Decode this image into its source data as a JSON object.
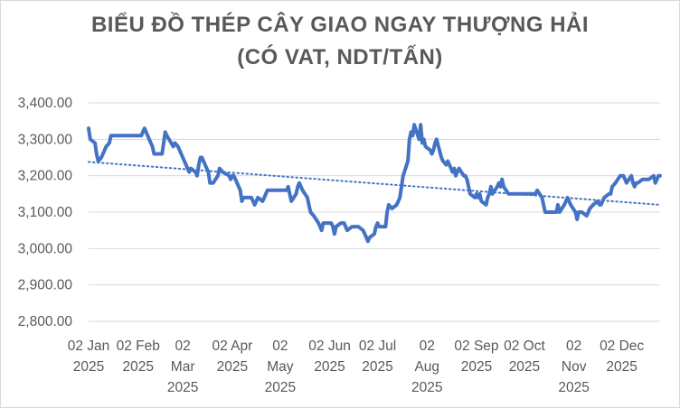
{
  "chart_data": {
    "type": "line",
    "title_line1": "BIỂU ĐỒ THÉP CÂY GIAO NGAY THƯỢNG HẢI",
    "title_line2": "(CÓ VAT, NDT/TẤN)",
    "xlabel": "",
    "ylabel": "",
    "ylim": [
      2800,
      3400
    ],
    "yticks": [
      "2,800.00",
      "2,900.00",
      "3,000.00",
      "3,100.00",
      "3,200.00",
      "3,300.00",
      "3,400.00"
    ],
    "xticks": [
      {
        "date": "2025-01-02",
        "label": [
          "02 Jan",
          "2025"
        ]
      },
      {
        "date": "2025-02-02",
        "label": [
          "02 Feb",
          "2025"
        ]
      },
      {
        "date": "2025-03-02",
        "label": [
          "02",
          "Mar",
          "2025"
        ]
      },
      {
        "date": "2025-04-02",
        "label": [
          "02 Apr",
          "2025"
        ]
      },
      {
        "date": "2025-05-02",
        "label": [
          "02",
          "May",
          "2025"
        ]
      },
      {
        "date": "2025-06-02",
        "label": [
          "02 Jun",
          "2025"
        ]
      },
      {
        "date": "2025-07-02",
        "label": [
          "02 Jul",
          "2025"
        ]
      },
      {
        "date": "2025-08-02",
        "label": [
          "02",
          "Aug",
          "2025"
        ]
      },
      {
        "date": "2025-09-02",
        "label": [
          "02 Sep",
          "2025"
        ]
      },
      {
        "date": "2025-10-02",
        "label": [
          "02 Oct",
          "2025"
        ]
      },
      {
        "date": "2025-11-02",
        "label": [
          "02",
          "Nov",
          "2025"
        ]
      },
      {
        "date": "2025-12-02",
        "label": [
          "02 Dec",
          "2025"
        ]
      }
    ],
    "grid": true,
    "colors": {
      "line": "#4472C4",
      "trend": "#4472C4",
      "grid": "#d9d9d9",
      "text": "#595959"
    },
    "series": [
      {
        "points": [
          [
            "2025-01-02",
            3330
          ],
          [
            "2025-01-03",
            3300
          ],
          [
            "2025-01-06",
            3290
          ],
          [
            "2025-01-07",
            3260
          ],
          [
            "2025-01-08",
            3240
          ],
          [
            "2025-01-10",
            3250
          ],
          [
            "2025-01-13",
            3280
          ],
          [
            "2025-01-15",
            3290
          ],
          [
            "2025-01-16",
            3310
          ],
          [
            "2025-01-20",
            3310
          ],
          [
            "2025-01-24",
            3310
          ],
          [
            "2025-01-27",
            3310
          ],
          [
            "2025-02-04",
            3310
          ],
          [
            "2025-02-05",
            3320
          ],
          [
            "2025-02-06",
            3330
          ],
          [
            "2025-02-07",
            3320
          ],
          [
            "2025-02-10",
            3290
          ],
          [
            "2025-02-11",
            3280
          ],
          [
            "2025-02-12",
            3260
          ],
          [
            "2025-02-14",
            3260
          ],
          [
            "2025-02-17",
            3260
          ],
          [
            "2025-02-18",
            3290
          ],
          [
            "2025-02-19",
            3320
          ],
          [
            "2025-02-20",
            3310
          ],
          [
            "2025-02-24",
            3280
          ],
          [
            "2025-02-25",
            3290
          ],
          [
            "2025-02-27",
            3280
          ],
          [
            "2025-03-01",
            3260
          ],
          [
            "2025-03-03",
            3240
          ],
          [
            "2025-03-04",
            3230
          ],
          [
            "2025-03-06",
            3210
          ],
          [
            "2025-03-07",
            3220
          ],
          [
            "2025-03-10",
            3210
          ],
          [
            "2025-03-11",
            3200
          ],
          [
            "2025-03-12",
            3230
          ],
          [
            "2025-03-13",
            3250
          ],
          [
            "2025-03-14",
            3250
          ],
          [
            "2025-03-17",
            3220
          ],
          [
            "2025-03-18",
            3210
          ],
          [
            "2025-03-19",
            3180
          ],
          [
            "2025-03-21",
            3180
          ],
          [
            "2025-03-24",
            3200
          ],
          [
            "2025-03-25",
            3220
          ],
          [
            "2025-03-27",
            3210
          ],
          [
            "2025-03-31",
            3200
          ],
          [
            "2025-04-01",
            3190
          ],
          [
            "2025-04-02",
            3200
          ],
          [
            "2025-04-03",
            3200
          ],
          [
            "2025-04-07",
            3160
          ],
          [
            "2025-04-08",
            3130
          ],
          [
            "2025-04-09",
            3140
          ],
          [
            "2025-04-11",
            3140
          ],
          [
            "2025-04-14",
            3140
          ],
          [
            "2025-04-15",
            3130
          ],
          [
            "2025-04-16",
            3120
          ],
          [
            "2025-04-17",
            3130
          ],
          [
            "2025-04-18",
            3140
          ],
          [
            "2025-04-21",
            3130
          ],
          [
            "2025-04-22",
            3140
          ],
          [
            "2025-04-24",
            3160
          ],
          [
            "2025-04-25",
            3160
          ],
          [
            "2025-04-30",
            3160
          ],
          [
            "2025-05-06",
            3160
          ],
          [
            "2025-05-07",
            3170
          ],
          [
            "2025-05-08",
            3150
          ],
          [
            "2025-05-09",
            3130
          ],
          [
            "2025-05-12",
            3150
          ],
          [
            "2025-05-13",
            3170
          ],
          [
            "2025-05-14",
            3180
          ],
          [
            "2025-05-16",
            3160
          ],
          [
            "2025-05-19",
            3140
          ],
          [
            "2025-05-20",
            3120
          ],
          [
            "2025-05-21",
            3100
          ],
          [
            "2025-05-23",
            3090
          ],
          [
            "2025-05-26",
            3070
          ],
          [
            "2025-05-27",
            3060
          ],
          [
            "2025-05-28",
            3050
          ],
          [
            "2025-05-29",
            3070
          ],
          [
            "2025-06-03",
            3070
          ],
          [
            "2025-06-04",
            3060
          ],
          [
            "2025-06-05",
            3040
          ],
          [
            "2025-06-06",
            3060
          ],
          [
            "2025-06-09",
            3070
          ],
          [
            "2025-06-11",
            3070
          ],
          [
            "2025-06-13",
            3050
          ],
          [
            "2025-06-16",
            3060
          ],
          [
            "2025-06-20",
            3060
          ],
          [
            "2025-06-23",
            3050
          ],
          [
            "2025-06-24",
            3040
          ],
          [
            "2025-06-25",
            3030
          ],
          [
            "2025-06-26",
            3020
          ],
          [
            "2025-06-27",
            3030
          ],
          [
            "2025-06-30",
            3040
          ],
          [
            "2025-07-01",
            3060
          ],
          [
            "2025-07-02",
            3070
          ],
          [
            "2025-07-03",
            3060
          ],
          [
            "2025-07-07",
            3060
          ],
          [
            "2025-07-08",
            3100
          ],
          [
            "2025-07-09",
            3120
          ],
          [
            "2025-07-11",
            3110
          ],
          [
            "2025-07-14",
            3120
          ],
          [
            "2025-07-16",
            3140
          ],
          [
            "2025-07-17",
            3170
          ],
          [
            "2025-07-18",
            3200
          ],
          [
            "2025-07-21",
            3240
          ],
          [
            "2025-07-22",
            3300
          ],
          [
            "2025-07-23",
            3320
          ],
          [
            "2025-07-24",
            3310
          ],
          [
            "2025-07-25",
            3340
          ],
          [
            "2025-07-28",
            3300
          ],
          [
            "2025-07-29",
            3340
          ],
          [
            "2025-07-30",
            3290
          ],
          [
            "2025-07-31",
            3300
          ],
          [
            "2025-08-01",
            3280
          ],
          [
            "2025-08-04",
            3270
          ],
          [
            "2025-08-05",
            3260
          ],
          [
            "2025-08-06",
            3270
          ],
          [
            "2025-08-07",
            3290
          ],
          [
            "2025-08-08",
            3300
          ],
          [
            "2025-08-11",
            3250
          ],
          [
            "2025-08-12",
            3240
          ],
          [
            "2025-08-14",
            3230
          ],
          [
            "2025-08-15",
            3240
          ],
          [
            "2025-08-18",
            3210
          ],
          [
            "2025-08-19",
            3220
          ],
          [
            "2025-08-20",
            3200
          ],
          [
            "2025-08-21",
            3210
          ],
          [
            "2025-08-22",
            3220
          ],
          [
            "2025-08-25",
            3200
          ],
          [
            "2025-08-26",
            3200
          ],
          [
            "2025-08-27",
            3190
          ],
          [
            "2025-08-28",
            3170
          ],
          [
            "2025-08-29",
            3150
          ],
          [
            "2025-09-01",
            3140
          ],
          [
            "2025-09-02",
            3150
          ],
          [
            "2025-09-03",
            3140
          ],
          [
            "2025-09-04",
            3150
          ],
          [
            "2025-09-05",
            3130
          ],
          [
            "2025-09-08",
            3120
          ],
          [
            "2025-09-09",
            3140
          ],
          [
            "2025-09-10",
            3150
          ],
          [
            "2025-09-11",
            3170
          ],
          [
            "2025-09-12",
            3150
          ],
          [
            "2025-09-15",
            3170
          ],
          [
            "2025-09-16",
            3180
          ],
          [
            "2025-09-17",
            3170
          ],
          [
            "2025-09-18",
            3190
          ],
          [
            "2025-09-19",
            3170
          ],
          [
            "2025-09-22",
            3150
          ],
          [
            "2025-09-25",
            3150
          ],
          [
            "2025-09-30",
            3150
          ],
          [
            "2025-10-09",
            3150
          ],
          [
            "2025-10-10",
            3160
          ],
          [
            "2025-10-13",
            3140
          ],
          [
            "2025-10-14",
            3120
          ],
          [
            "2025-10-15",
            3100
          ],
          [
            "2025-10-20",
            3100
          ],
          [
            "2025-10-22",
            3100
          ],
          [
            "2025-10-23",
            3120
          ],
          [
            "2025-10-24",
            3100
          ],
          [
            "2025-10-27",
            3120
          ],
          [
            "2025-10-29",
            3140
          ],
          [
            "2025-10-30",
            3130
          ],
          [
            "2025-10-31",
            3120
          ],
          [
            "2025-11-03",
            3100
          ],
          [
            "2025-11-04",
            3080
          ],
          [
            "2025-11-05",
            3100
          ],
          [
            "2025-11-07",
            3100
          ],
          [
            "2025-11-10",
            3090
          ],
          [
            "2025-11-11",
            3100
          ],
          [
            "2025-11-12",
            3110
          ],
          [
            "2025-11-14",
            3120
          ],
          [
            "2025-11-17",
            3130
          ],
          [
            "2025-11-18",
            3120
          ],
          [
            "2025-11-19",
            3120
          ],
          [
            "2025-11-20",
            3130
          ],
          [
            "2025-11-21",
            3140
          ],
          [
            "2025-11-24",
            3150
          ],
          [
            "2025-11-25",
            3150
          ],
          [
            "2025-11-26",
            3170
          ],
          [
            "2025-11-28",
            3180
          ],
          [
            "2025-12-01",
            3200
          ],
          [
            "2025-12-03",
            3200
          ],
          [
            "2025-12-04",
            3190
          ],
          [
            "2025-12-05",
            3180
          ],
          [
            "2025-12-08",
            3200
          ],
          [
            "2025-12-09",
            3180
          ],
          [
            "2025-12-10",
            3170
          ],
          [
            "2025-12-11",
            3180
          ],
          [
            "2025-12-12",
            3180
          ],
          [
            "2025-12-15",
            3190
          ],
          [
            "2025-12-17",
            3190
          ],
          [
            "2025-12-19",
            3190
          ],
          [
            "2025-12-22",
            3200
          ],
          [
            "2025-12-23",
            3180
          ],
          [
            "2025-12-24",
            3190
          ],
          [
            "2025-12-25",
            3200
          ],
          [
            "2025-12-26",
            3200
          ]
        ]
      }
    ],
    "trendline": {
      "style": "dotted",
      "points": [
        [
          "2025-01-02",
          3238
        ],
        [
          "2025-12-26",
          3120
        ]
      ]
    }
  }
}
